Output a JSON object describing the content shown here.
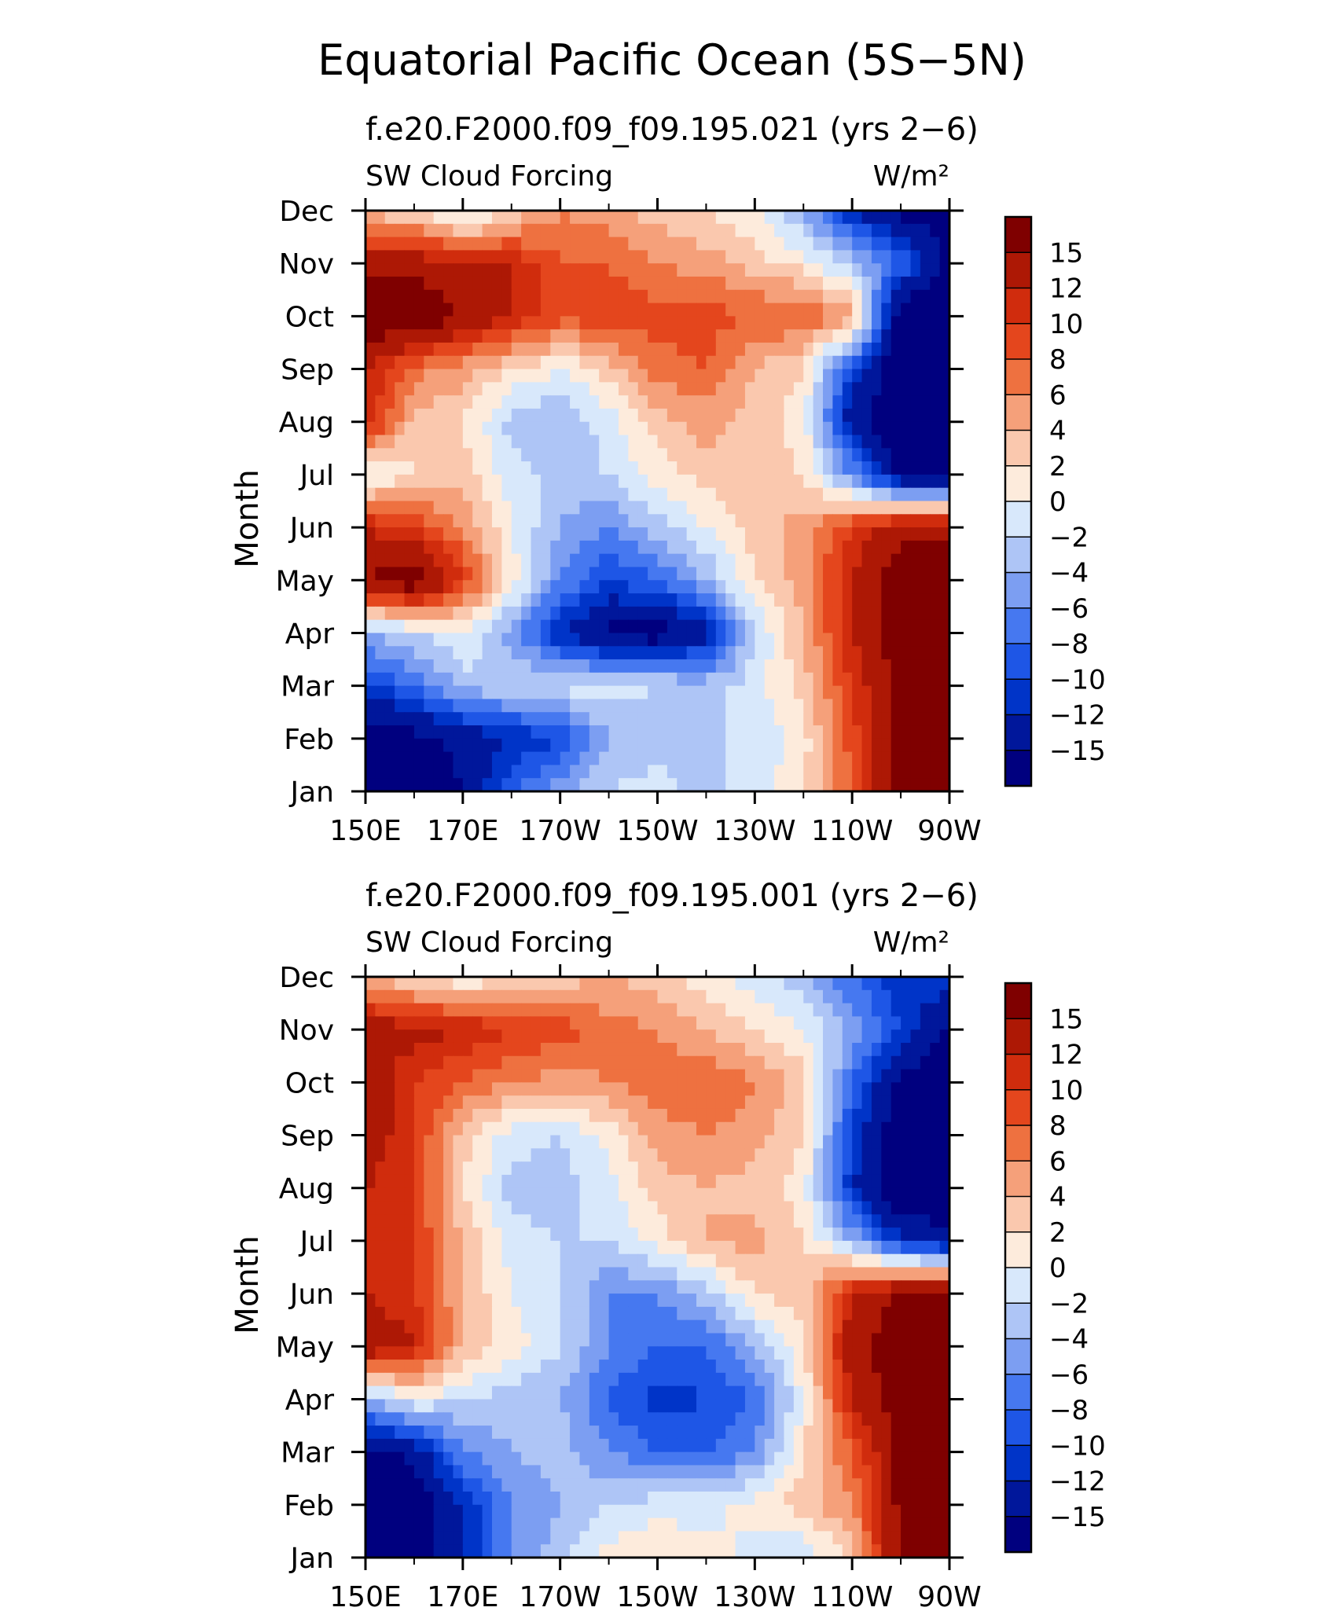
{
  "figure": {
    "title": "Equatorial Pacific Ocean (5S−5N)"
  },
  "chart_data": [
    {
      "type": "heatmap",
      "title": "f.e20.F2000.f09_f09.195.021 (yrs 2−6)",
      "left_label": "SW Cloud Forcing",
      "units_label": "W/m²",
      "ylabel": "Month",
      "x_ticks": [
        "150E",
        "170E",
        "170W",
        "150W",
        "130W",
        "110W",
        "90W"
      ],
      "y_ticks": [
        "Jan",
        "Feb",
        "Mar",
        "Apr",
        "May",
        "Jun",
        "Jul",
        "Aug",
        "Sep",
        "Oct",
        "Nov",
        "Dec"
      ],
      "xlim": [
        150,
        270
      ],
      "colorbar_labels": [
        "15",
        "12",
        "10",
        "8",
        "6",
        "4",
        "2",
        "0",
        "−2",
        "−4",
        "−6",
        "−8",
        "−10",
        "−12",
        "−15"
      ],
      "lon_samples": [
        150,
        160,
        170,
        180,
        190,
        200,
        210,
        220,
        230,
        240,
        250,
        260,
        270
      ],
      "values": [
        [
          -18,
          -18,
          -15,
          -8,
          -5,
          -2,
          -1,
          -3,
          -1,
          2,
          8,
          16,
          18
        ],
        [
          -18,
          -16,
          -14,
          -12,
          -10,
          -4,
          -3,
          -2,
          -2,
          1,
          9,
          16,
          18
        ],
        [
          -10,
          -8,
          -3,
          -2,
          -1,
          -1,
          -2,
          -3,
          -1,
          3,
          10,
          16,
          18
        ],
        [
          -4,
          -2,
          0,
          -5,
          -12,
          -16,
          -17,
          -13,
          -2,
          4,
          12,
          17,
          18
        ],
        [
          15,
          18,
          10,
          1,
          -6,
          -10,
          -8,
          -4,
          2,
          5,
          12,
          17,
          18
        ],
        [
          12,
          10,
          6,
          0,
          -4,
          -6,
          -3,
          0,
          3,
          5,
          10,
          14,
          14
        ],
        [
          -1,
          2,
          3,
          -1,
          -3,
          -2,
          1,
          3,
          3,
          2,
          -6,
          -16,
          -18
        ],
        [
          12,
          3,
          2,
          -3,
          -4,
          -1,
          3,
          5,
          3,
          1,
          -14,
          -18,
          -18
        ],
        [
          12,
          7,
          5,
          2,
          0,
          3,
          7,
          8,
          4,
          2,
          -10,
          -18,
          -18
        ],
        [
          18,
          18,
          15,
          12,
          9,
          9,
          9,
          9,
          8,
          8,
          5,
          -18,
          -18
        ],
        [
          14,
          14,
          12,
          12,
          8,
          8,
          6,
          5,
          3,
          1,
          -3,
          -8,
          -16
        ],
        [
          3,
          2,
          -2,
          2,
          6,
          5,
          3,
          2,
          0,
          -4,
          -12,
          -16,
          -16
        ]
      ]
    },
    {
      "type": "heatmap",
      "title": "f.e20.F2000.f09_f09.195.001 (yrs 2−6)",
      "left_label": "SW Cloud Forcing",
      "units_label": "W/m²",
      "ylabel": "Month",
      "x_ticks": [
        "150E",
        "170E",
        "170W",
        "150W",
        "130W",
        "110W",
        "90W"
      ],
      "y_ticks": [
        "Jan",
        "Feb",
        "Mar",
        "Apr",
        "May",
        "Jun",
        "Jul",
        "Aug",
        "Sep",
        "Oct",
        "Nov",
        "Dec"
      ],
      "xlim": [
        150,
        270
      ],
      "colorbar_labels": [
        "15",
        "12",
        "10",
        "8",
        "6",
        "4",
        "2",
        "0",
        "−2",
        "−4",
        "−6",
        "−8",
        "−10",
        "−12",
        "−15"
      ],
      "lon_samples": [
        150,
        160,
        170,
        180,
        190,
        200,
        210,
        220,
        230,
        240,
        250,
        260,
        270
      ],
      "values": [
        [
          -18,
          -18,
          -12,
          -6,
          -3,
          1,
          2,
          1,
          -1,
          -2,
          3,
          16,
          18
        ],
        [
          -18,
          -18,
          -12,
          -6,
          -4,
          -2,
          -1,
          -1,
          1,
          3,
          6,
          16,
          18
        ],
        [
          -16,
          -14,
          -6,
          -4,
          -3,
          -6,
          -8,
          -8,
          -6,
          2,
          8,
          16,
          18
        ],
        [
          -4,
          0,
          -2,
          -3,
          -4,
          -8,
          -11,
          -10,
          -8,
          0,
          12,
          17,
          18
        ],
        [
          15,
          12,
          4,
          1,
          -2,
          -6,
          -8,
          -8,
          -4,
          2,
          14,
          17,
          18
        ],
        [
          12,
          10,
          4,
          0,
          -2,
          -6,
          -6,
          -3,
          2,
          3,
          12,
          16,
          16
        ],
        [
          12,
          10,
          4,
          -1,
          -2,
          -2,
          1,
          4,
          5,
          2,
          -4,
          -12,
          -14
        ],
        [
          12,
          10,
          2,
          -3,
          -3,
          -1,
          3,
          4,
          3,
          1,
          -12,
          -18,
          -18
        ],
        [
          14,
          10,
          3,
          -1,
          -2,
          1,
          5,
          6,
          5,
          2,
          -10,
          -18,
          -18
        ],
        [
          14,
          10,
          8,
          6,
          5,
          6,
          7,
          8,
          6,
          3,
          -8,
          -16,
          -18
        ],
        [
          14,
          13,
          12,
          10,
          9,
          7,
          6,
          4,
          2,
          0,
          -4,
          -10,
          -16
        ],
        [
          4,
          2,
          0,
          2,
          3,
          4,
          3,
          1,
          -1,
          -3,
          -8,
          -12,
          -10
        ]
      ]
    }
  ]
}
